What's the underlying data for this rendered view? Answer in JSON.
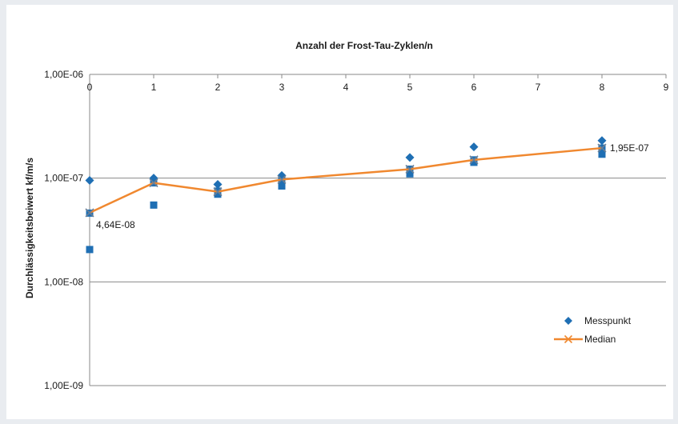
{
  "chart_data": {
    "type": "scatter",
    "title": "Anzahl der Frost-Tau-Zyklen/n",
    "ylabel": "Durchlässigkeitsbeiwert kf/m/s",
    "xlabel": "",
    "xlim": [
      0,
      9
    ],
    "x_ticks": [
      "0",
      "1",
      "2",
      "3",
      "4",
      "5",
      "6",
      "7",
      "8",
      "9"
    ],
    "ylim": [
      1e-09,
      1e-06
    ],
    "y_scale": "log",
    "y_ticks": [
      {
        "value": 1e-06,
        "label": "1,00E-06"
      },
      {
        "value": 1e-07,
        "label": "1,00E-07"
      },
      {
        "value": 1e-08,
        "label": "1,00E-08"
      },
      {
        "value": 1e-09,
        "label": "1,00E-09"
      }
    ],
    "x_axis_position": "top",
    "grid": "horizontal",
    "legend_position": "right",
    "colors": {
      "messpunkt": "#1f6fb4",
      "median": "#f0882f",
      "median_marker": "#6b7f95"
    },
    "series": [
      {
        "name": "Messpunkt",
        "points": [
          {
            "x": 0,
            "y": 9.5e-08,
            "shape": "diamond"
          },
          {
            "x": 0,
            "y": 4.6e-08,
            "shape": "square"
          },
          {
            "x": 0,
            "y": 2.05e-08,
            "shape": "square"
          },
          {
            "x": 1,
            "y": 1e-07,
            "shape": "diamond"
          },
          {
            "x": 1,
            "y": 9e-08,
            "shape": "square"
          },
          {
            "x": 1,
            "y": 5.5e-08,
            "shape": "square"
          },
          {
            "x": 2,
            "y": 8.7e-08,
            "shape": "diamond"
          },
          {
            "x": 2,
            "y": 7.5e-08,
            "shape": "square"
          },
          {
            "x": 2,
            "y": 7e-08,
            "shape": "square"
          },
          {
            "x": 3,
            "y": 1.06e-07,
            "shape": "diamond"
          },
          {
            "x": 3,
            "y": 9.5e-08,
            "shape": "square"
          },
          {
            "x": 3,
            "y": 8.4e-08,
            "shape": "square"
          },
          {
            "x": 5,
            "y": 1.58e-07,
            "shape": "diamond"
          },
          {
            "x": 5,
            "y": 1.22e-07,
            "shape": "square"
          },
          {
            "x": 5,
            "y": 1.1e-07,
            "shape": "square"
          },
          {
            "x": 6,
            "y": 2e-07,
            "shape": "diamond"
          },
          {
            "x": 6,
            "y": 1.5e-07,
            "shape": "square"
          },
          {
            "x": 6,
            "y": 1.42e-07,
            "shape": "square"
          },
          {
            "x": 8,
            "y": 2.3e-07,
            "shape": "diamond"
          },
          {
            "x": 8,
            "y": 1.95e-07,
            "shape": "square"
          },
          {
            "x": 8,
            "y": 1.7e-07,
            "shape": "square"
          }
        ]
      },
      {
        "name": "Median",
        "type": "line",
        "x": [
          0,
          1,
          2,
          3,
          5,
          6,
          8
        ],
        "y": [
          4.64e-08,
          9e-08,
          7.4e-08,
          9.7e-08,
          1.22e-07,
          1.5e-07,
          1.95e-07
        ]
      }
    ],
    "annotations": [
      {
        "x": 0,
        "y": 4.64e-08,
        "text": "4,64E-08",
        "anchor": "below-right"
      },
      {
        "x": 8,
        "y": 1.95e-07,
        "text": "1,95E-07",
        "anchor": "right"
      }
    ],
    "legend": [
      {
        "label": "Messpunkt",
        "kind": "diamond"
      },
      {
        "label": "Median",
        "kind": "line-x"
      }
    ]
  }
}
